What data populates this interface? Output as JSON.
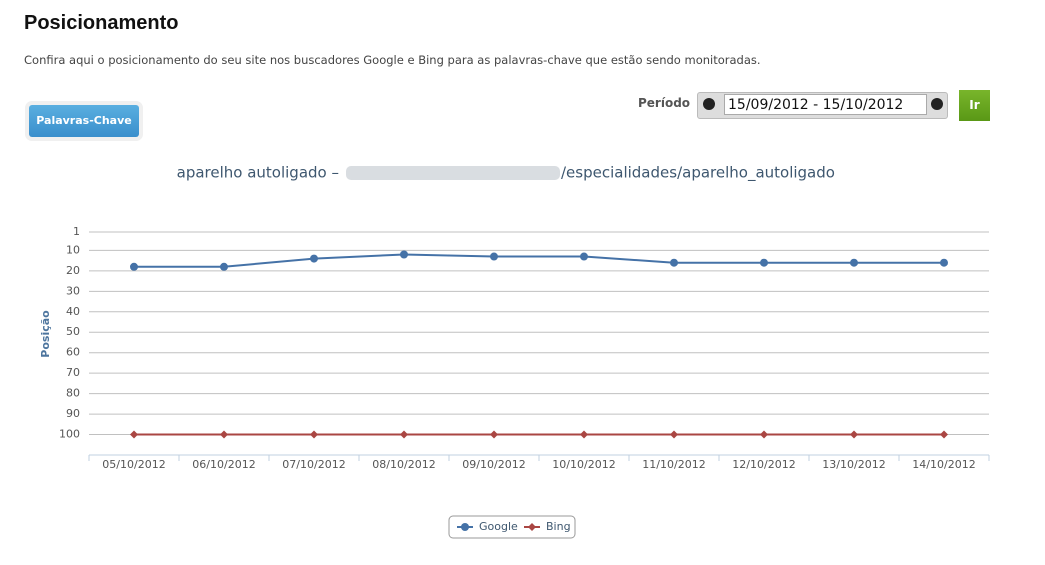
{
  "header": {
    "title": "Posicionamento",
    "description": "Confira aqui o posicionamento do seu site nos buscadores Google e Bing para as palavras-chave que estão sendo monitoradas."
  },
  "toolbar": {
    "keywords_button": "Palavras-Chave",
    "period_label": "Período",
    "date_range": "15/09/2012 - 15/10/2012",
    "go_button": "Ir"
  },
  "chart_data": {
    "type": "line",
    "title_parts": [
      "aparelho autoligado –",
      "/especialidades/aparelho_autoligado"
    ],
    "ylabel": "Posição",
    "categories": [
      "05/10/2012",
      "06/10/2012",
      "07/10/2012",
      "08/10/2012",
      "09/10/2012",
      "10/10/2012",
      "11/10/2012",
      "12/10/2012",
      "13/10/2012",
      "14/10/2012"
    ],
    "series": [
      {
        "name": "Google",
        "color": "#4572a7",
        "marker": "circle",
        "values": [
          18,
          18,
          14,
          12,
          13,
          13,
          16,
          16,
          16,
          16
        ]
      },
      {
        "name": "Bing",
        "color": "#aa4643",
        "marker": "diamond",
        "values": [
          100,
          100,
          100,
          100,
          100,
          100,
          100,
          100,
          100,
          100
        ]
      }
    ],
    "ylim": [
      1,
      110
    ],
    "reversed": true,
    "yticks": [
      1,
      10,
      20,
      30,
      40,
      50,
      60,
      70,
      80,
      90,
      100
    ],
    "grid": true,
    "legend": "bottom"
  }
}
